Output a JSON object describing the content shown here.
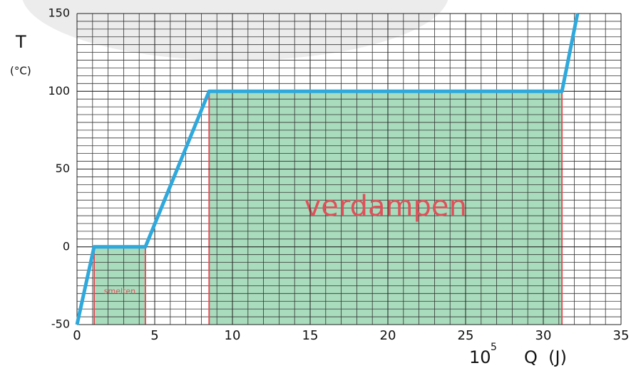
{
  "chart_data": {
    "type": "line",
    "y_label": "T",
    "y_unit": "(°C)",
    "x_scale_base": "10",
    "x_scale_exponent": "5",
    "x_label": "Q  (J)",
    "x": [
      0,
      1.1,
      4.4,
      8.5,
      31.2,
      32.2
    ],
    "values": [
      -50,
      0,
      0,
      100,
      100,
      150
    ],
    "color": "#2fa8dc",
    "xlim": [
      0,
      35
    ],
    "ylim": [
      -50,
      150
    ],
    "xticks": [
      0,
      5,
      10,
      15,
      20,
      25,
      30,
      35
    ],
    "yticks": [
      -50,
      0,
      50,
      100,
      150
    ],
    "grid": true,
    "minor_grid_step": {
      "x": 1,
      "y": 5
    },
    "regions": [
      {
        "label": "smelten",
        "x": [
          1.1,
          4.4
        ],
        "y": [
          -50,
          0
        ]
      },
      {
        "label": "verdampen",
        "x": [
          8.5,
          31.2
        ],
        "y": [
          -50,
          100
        ]
      }
    ],
    "region_color": "#a9dcbc",
    "region_edge_color": "#e0505a"
  }
}
